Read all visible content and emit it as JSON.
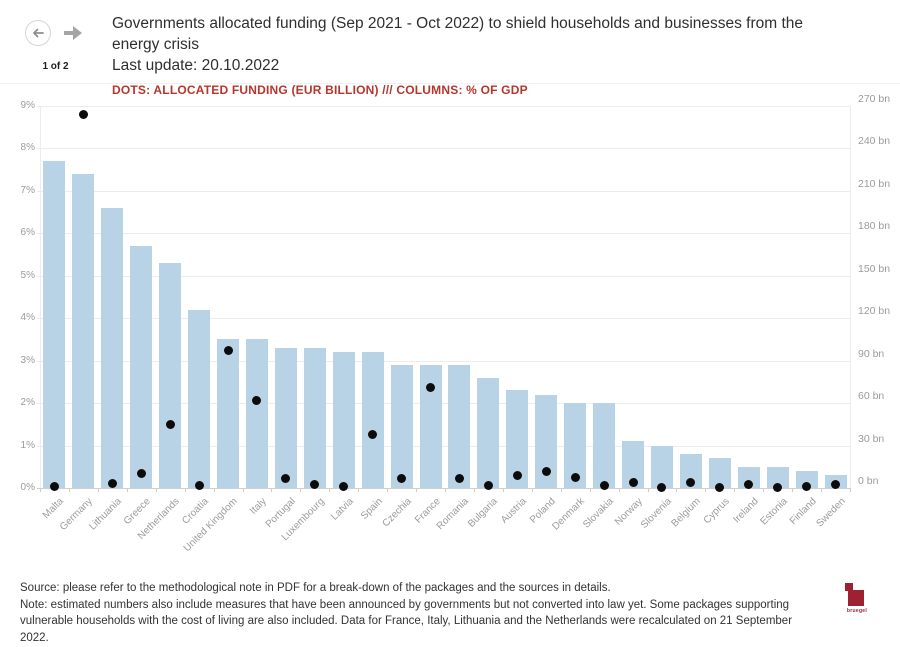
{
  "header": {
    "pagination": "1 of 2",
    "title": "Governments allocated funding (Sep 2021 - Oct 2022) to shield households and businesses from the energy crisis",
    "last_update": "Last update: 20.10.2022",
    "legend": "DOTS: ALLOCATED FUNDING (EUR BILLION) /// COLUMNS: % OF GDP"
  },
  "chart_data": {
    "type": "bar",
    "title": "Governments allocated funding (Sep 2021 - Oct 2022) to shield households and businesses from the energy crisis",
    "categories": [
      "Malta",
      "Germany",
      "Lithuania",
      "Greece",
      "Netherlands",
      "Croatia",
      "United Kingdom",
      "Italy",
      "Portugal",
      "Luxembourg",
      "Latvia",
      "Spain",
      "Czechia",
      "France",
      "Romania",
      "Bulgaria",
      "Austria",
      "Poland",
      "Denmark",
      "Slovakia",
      "Norway",
      "Slovenia",
      "Belgium",
      "Cyprus",
      "Ireland",
      "Estonia",
      "Finland",
      "Sweden"
    ],
    "series": [
      {
        "name": "Columns: % of GDP",
        "type": "column",
        "axis": "left",
        "values": [
          7.7,
          7.4,
          6.6,
          5.7,
          5.3,
          4.2,
          3.5,
          3.5,
          3.3,
          3.3,
          3.2,
          3.2,
          2.9,
          2.9,
          2.9,
          2.6,
          2.3,
          2.2,
          2.0,
          2.0,
          1.1,
          1.0,
          0.8,
          0.7,
          0.5,
          0.5,
          0.4,
          0.3
        ]
      },
      {
        "name": "Dots: allocated funding (EUR billion)",
        "type": "scatter",
        "axis": "right",
        "values": [
          1,
          264,
          3,
          10.5,
          45,
          2,
          97,
          62,
          7,
          2.5,
          1,
          38,
          7,
          71,
          7,
          1.5,
          9,
          12,
          7.5,
          2,
          4,
          0.6,
          4,
          0.4,
          2.4,
          0.3,
          1.2,
          2.4
        ]
      }
    ],
    "left_axis": {
      "unit": "% of GDP",
      "min": 0,
      "max": 9,
      "ticks": [
        "0%",
        "1%",
        "2%",
        "3%",
        "4%",
        "5%",
        "6%",
        "7%",
        "8%",
        "9%"
      ]
    },
    "right_axis": {
      "unit": "EUR billion",
      "min": 0,
      "max": 270,
      "ticks": [
        "0 bn",
        "30 bn",
        "60 bn",
        "90 bn",
        "120 bn",
        "150 bn",
        "180 bn",
        "210 bn",
        "240 bn",
        "270 bn"
      ]
    },
    "grid": true,
    "legend_position": "none"
  },
  "colors": {
    "column": "#b8d3e6",
    "dot": "#0c0c0c",
    "accent_red": "#b5362d",
    "axis_text": "#9b9b9b"
  },
  "footer": {
    "source": "Source: please refer to the methodological note in PDF for a break-down of the packages and the sources in details.",
    "note": "Note: estimated numbers also include measures that have been announced by governments but not converted into law yet. Some packages supporting vulnerable households with the cost of living are also included. Data for France, Italy, Lithuania and the Netherlands were recalculated on 21 September 2022.",
    "logo_text": "bruegel"
  }
}
